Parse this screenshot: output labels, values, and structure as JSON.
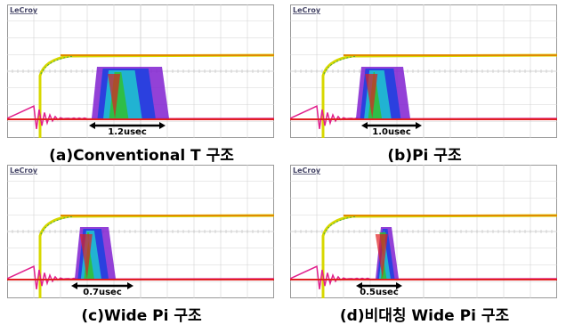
{
  "panels": [
    {
      "brand": "LeCroy",
      "annotation": "1.2usec",
      "caption": "(a)Conventional T 구조"
    },
    {
      "brand": "LeCroy",
      "annotation": "1.0usec",
      "caption": "(b)Pi 구조"
    },
    {
      "brand": "LeCroy",
      "annotation": "0.7usec",
      "caption": "(c)Wide Pi 구조"
    },
    {
      "brand": "LeCroy",
      "annotation": "0.5usec",
      "caption": "(d)비대칭 Wide Pi 구조"
    }
  ]
}
